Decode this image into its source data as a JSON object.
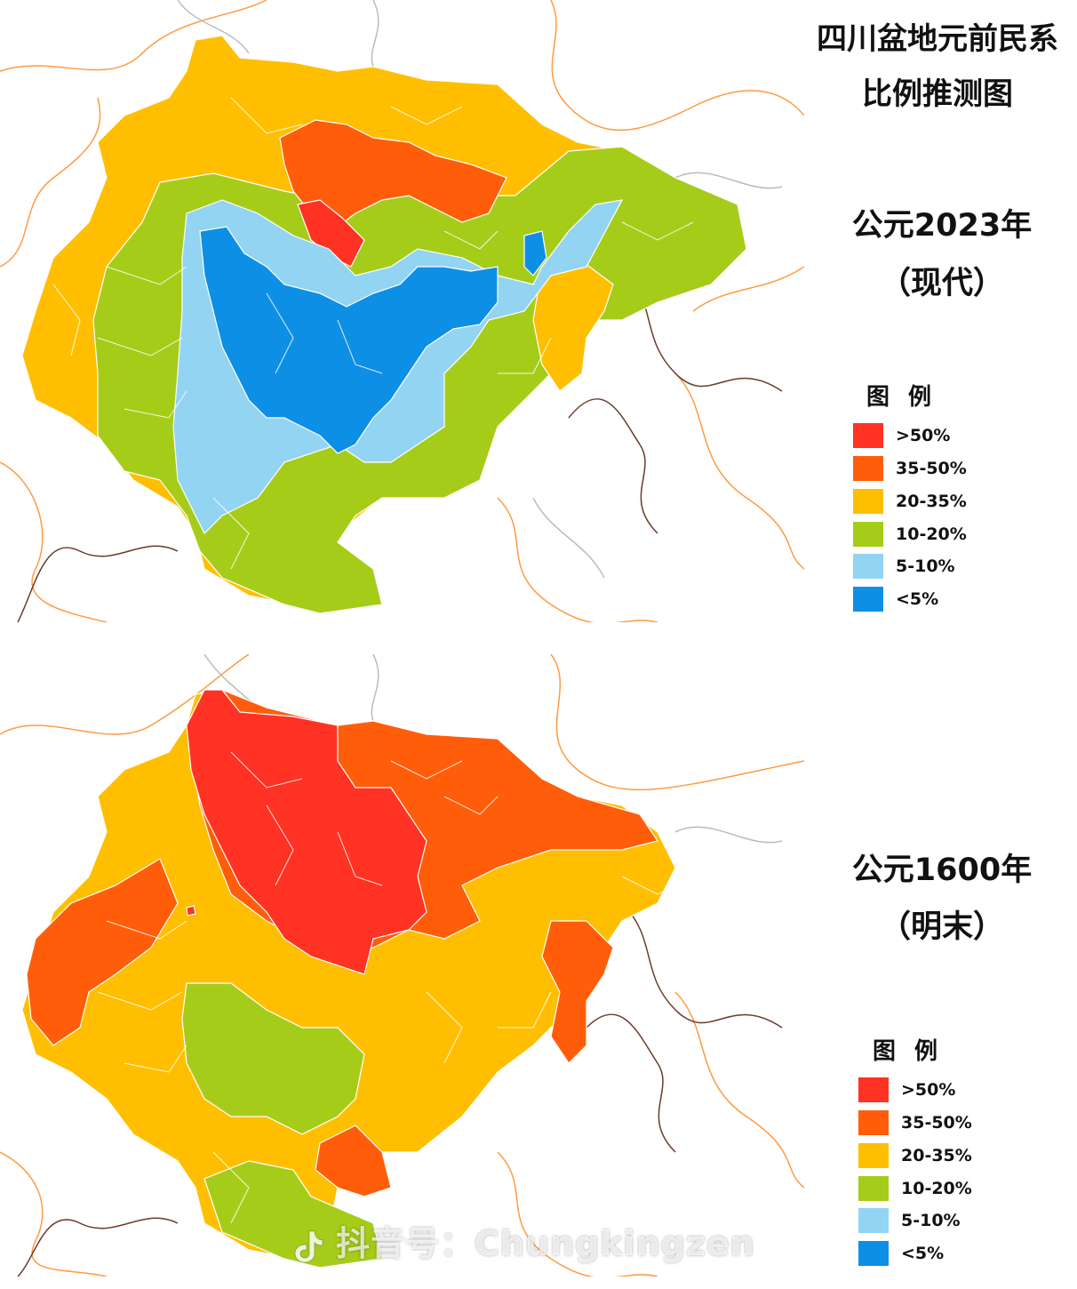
{
  "title": {
    "line1": "四川盆地元前民系",
    "line2": "比例推测图"
  },
  "panels": [
    {
      "era": "公元2023年",
      "label": "（现代）",
      "legend_title": "图 例",
      "visible_categories": [
        ">50%",
        "35-50%",
        "20-35%",
        "10-20%",
        "5-10%",
        "<5%"
      ]
    },
    {
      "era": "公元1600年",
      "label": "（明末）",
      "legend_title": "图 例",
      "visible_categories": [
        ">50%",
        "35-50%",
        "20-35%",
        "10-20%",
        "5-10%",
        "<5%"
      ]
    }
  ],
  "legend": [
    {
      "label": ">50%",
      "color": "#ff3224"
    },
    {
      "label": "35-50%",
      "color": "#ff5d0a"
    },
    {
      "label": "20-35%",
      "color": "#ffbf00"
    },
    {
      "label": "10-20%",
      "color": "#a6cc1a"
    },
    {
      "label": "5-10%",
      "color": "#92d4f2"
    },
    {
      "label": "<5%",
      "color": "#0e8fe6"
    }
  ],
  "watermark": {
    "platform": "抖音号",
    "account": "Chungkingzen",
    "icon": "douyin-icon"
  }
}
